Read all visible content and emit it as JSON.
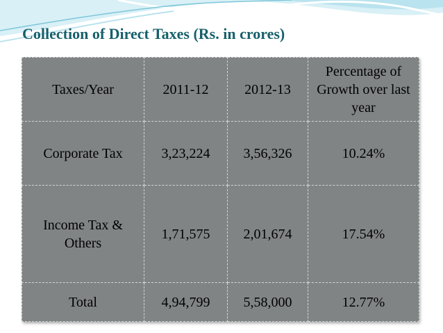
{
  "slide": {
    "title": "Collection of Direct Taxes (Rs. in crores)"
  },
  "theme": {
    "title_color": "#17606b",
    "table_bg": "#818485",
    "wave_colors": [
      "#b9e3ee",
      "#d8f0f6",
      "#7fc6da"
    ]
  },
  "table": {
    "headers": {
      "col1": "Taxes/Year",
      "col2": "2011-12",
      "col3": "2012-13",
      "col4": "Percentage of Growth over last year"
    },
    "rows": [
      {
        "tax": "Corporate Tax",
        "y2011": "3,23,224",
        "y2012": "3,56,326",
        "growth": "10.24%"
      },
      {
        "tax": "Income Tax & Others",
        "y2011": "1,71,575",
        "y2012": "2,01,674",
        "growth": "17.54%"
      },
      {
        "tax": "Total",
        "y2011": "4,94,799",
        "y2012": "5,58,000",
        "growth": "12.77%"
      }
    ]
  }
}
